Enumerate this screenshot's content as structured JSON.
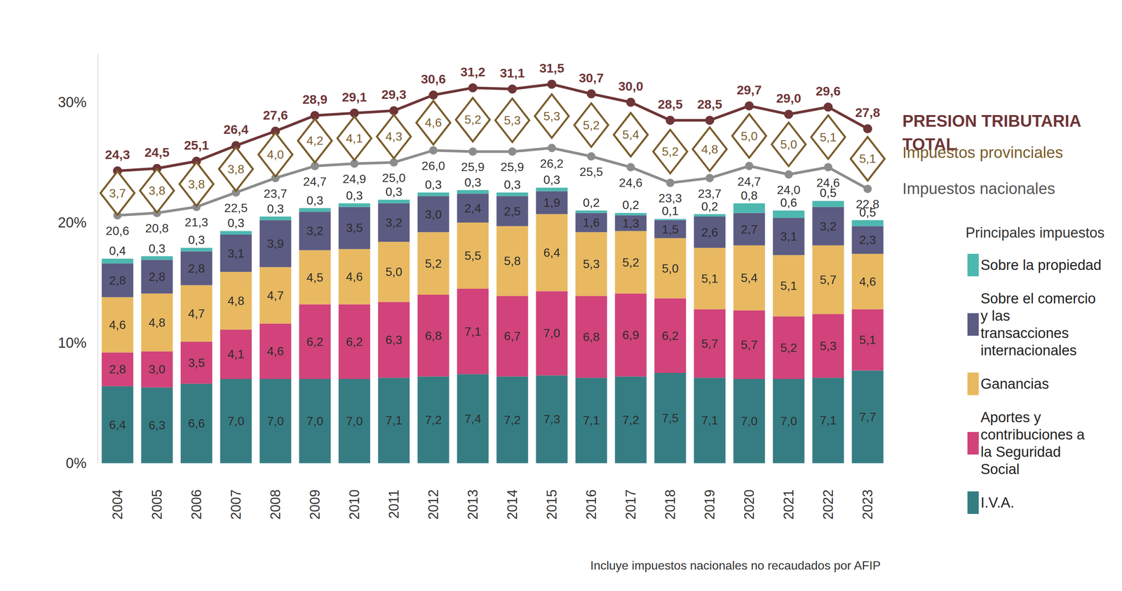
{
  "chart_data": {
    "type": "bar",
    "stacked": true,
    "data_labels": true,
    "grid": false,
    "legend": "right",
    "legend_title": "Principales impuestos",
    "annotation": "Incluye impuestos nacionales no recaudados por AFIP",
    "categories": [
      "2004",
      "2005",
      "2006",
      "2007",
      "2008",
      "2009",
      "2010",
      "2011",
      "2012",
      "2013",
      "2014",
      "2015",
      "2016",
      "2017",
      "2018",
      "2019",
      "2020",
      "2021",
      "2022",
      "2023"
    ],
    "ylim": [
      0,
      34
    ],
    "yticks": [
      {
        "value": 0,
        "label": "0%"
      },
      {
        "value": 10,
        "label": "10%"
      },
      {
        "value": 20,
        "label": "20%"
      },
      {
        "value": 30,
        "label": "30%"
      }
    ],
    "series": [
      {
        "name": "I.V.A.",
        "type": "bar",
        "color": "#367d83",
        "values": [
          6.4,
          6.3,
          6.6,
          7.0,
          7.0,
          7.0,
          7.0,
          7.1,
          7.2,
          7.4,
          7.2,
          7.3,
          7.1,
          7.2,
          7.5,
          7.1,
          7.0,
          7.0,
          7.1,
          7.7
        ],
        "value_labels": [
          "6,4",
          "6,3",
          "6,6",
          "7,0",
          "7,0",
          "7,0",
          "7,0",
          "7,1",
          "7,2",
          "7,4",
          "7,2",
          "7,3",
          "7,1",
          "7,2",
          "7,5",
          "7,1",
          "7,0",
          "7,0",
          "7,1",
          "7,7"
        ]
      },
      {
        "name": "Aportes y contribuciones a la Seguridad Social",
        "type": "bar",
        "color": "#d1437a",
        "values": [
          2.8,
          3.0,
          3.5,
          4.1,
          4.6,
          6.2,
          6.2,
          6.3,
          6.8,
          7.1,
          6.7,
          7.0,
          6.8,
          6.9,
          6.2,
          5.7,
          5.7,
          5.2,
          5.3,
          5.1
        ],
        "value_labels": [
          "2,8",
          "3,0",
          "3,5",
          "4,1",
          "4,6",
          "6,2",
          "6,2",
          "6,3",
          "6,8",
          "7,1",
          "6,7",
          "7,0",
          "6,8",
          "6,9",
          "6,2",
          "5,7",
          "5,7",
          "5,2",
          "5,3",
          "5,1"
        ]
      },
      {
        "name": "Ganancias",
        "type": "bar",
        "color": "#e8b960",
        "values": [
          4.6,
          4.8,
          4.7,
          4.8,
          4.7,
          4.5,
          4.6,
          5.0,
          5.2,
          5.5,
          5.8,
          6.4,
          5.3,
          5.2,
          5.0,
          5.1,
          5.4,
          5.1,
          5.7,
          4.6
        ],
        "value_labels": [
          "4,6",
          "4,8",
          "4,7",
          "4,8",
          "4,7",
          "4,5",
          "4,6",
          "5,0",
          "5,2",
          "5,5",
          "5,8",
          "6,4",
          "5,3",
          "5,2",
          "5,0",
          "5,1",
          "5,4",
          "5,1",
          "5,7",
          "4,6"
        ]
      },
      {
        "name": "Sobre el comercio y las transacciones internacionales",
        "type": "bar",
        "color": "#5c5b82",
        "values": [
          2.8,
          2.8,
          2.8,
          3.1,
          3.9,
          3.2,
          3.5,
          3.2,
          3.0,
          2.4,
          2.5,
          1.9,
          1.6,
          1.3,
          1.5,
          2.6,
          2.7,
          3.1,
          3.2,
          2.3
        ],
        "value_labels": [
          "2,8",
          "2,8",
          "2,8",
          "3,1",
          "3,9",
          "3,2",
          "3,5",
          "3,2",
          "3,0",
          "2,4",
          "2,5",
          "1,9",
          "1,6",
          "1,3",
          "1,5",
          "2,6",
          "2,7",
          "3,1",
          "3,2",
          "2,3"
        ]
      },
      {
        "name": "Sobre la propiedad",
        "type": "bar",
        "color": "#4db8b0",
        "values": [
          0.4,
          0.3,
          0.3,
          0.3,
          0.3,
          0.3,
          0.3,
          0.3,
          0.3,
          0.3,
          0.3,
          0.3,
          0.2,
          0.2,
          0.1,
          0.2,
          0.8,
          0.6,
          0.5,
          0.5
        ],
        "value_labels": [
          "0,4",
          "0,3",
          "0,3",
          "0,3",
          "0,3",
          "0,3",
          "0,3",
          "0,3",
          "0,3",
          "0,3",
          "0,3",
          "0,3",
          "0,2",
          "0,2",
          "0,1",
          "0,2",
          "0,8",
          "0,6",
          "0,5",
          "0,5"
        ]
      },
      {
        "name": "PRESION TRIBUTARIA TOTAL",
        "type": "line",
        "marker": "circle",
        "color": "#6e3537",
        "values": [
          24.3,
          24.5,
          25.1,
          26.4,
          27.6,
          28.9,
          29.1,
          29.3,
          30.6,
          31.2,
          31.1,
          31.5,
          30.7,
          30.0,
          28.5,
          28.5,
          29.7,
          29.0,
          29.6,
          27.8
        ],
        "value_labels": [
          "24,3",
          "24,5",
          "25,1",
          "26,4",
          "27,6",
          "28,9",
          "29,1",
          "29,3",
          "30,6",
          "31,2",
          "31,1",
          "31,5",
          "30,7",
          "30,0",
          "28,5",
          "28,5",
          "29,7",
          "29,0",
          "29,6",
          "27,8"
        ]
      },
      {
        "name": "Impuestos nacionales",
        "type": "line",
        "marker": "circle",
        "color": "#8c8c8c",
        "values": [
          20.6,
          20.8,
          21.3,
          22.5,
          23.7,
          24.7,
          24.9,
          25.0,
          26.0,
          25.9,
          25.9,
          26.2,
          25.5,
          24.6,
          23.3,
          23.7,
          24.7,
          24.0,
          24.6,
          22.8
        ],
        "value_labels": [
          "20,6",
          "20,8",
          "21,3",
          "22,5",
          "23,7",
          "24,7",
          "24,9",
          "25,0",
          "26,0",
          "25,9",
          "25,9",
          "26,2",
          "25,5",
          "24,6",
          "23,3",
          "23,7",
          "24,7",
          "24,0",
          "24,6",
          "22,8"
        ]
      },
      {
        "name": "Impuestos provinciales",
        "type": "scatter",
        "marker": "diamond",
        "color": "#7a5c2a",
        "values": [
          3.7,
          3.8,
          3.8,
          3.8,
          4.0,
          4.2,
          4.1,
          4.3,
          4.6,
          5.2,
          5.3,
          5.3,
          5.2,
          5.4,
          5.2,
          4.8,
          5.0,
          5.0,
          5.1,
          5.1
        ],
        "value_labels": [
          "3,7",
          "3,8",
          "3,8",
          "3,8",
          "4,0",
          "4,2",
          "4,1",
          "4,3",
          "4,6",
          "5,2",
          "5,3",
          "5,3",
          "5,2",
          "5,4",
          "5,2",
          "4,8",
          "5,0",
          "5,0",
          "5,1",
          "5,1"
        ]
      }
    ]
  }
}
